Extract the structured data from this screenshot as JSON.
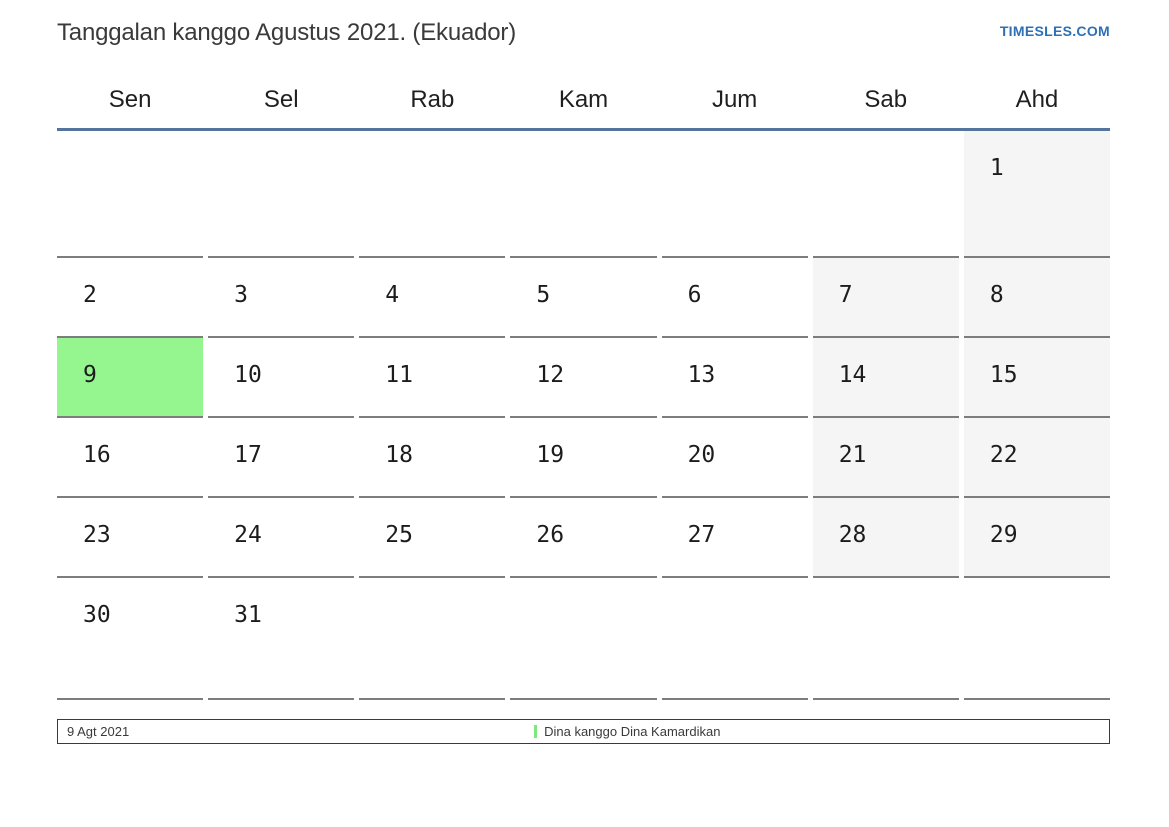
{
  "page": {
    "title": "Tanggalan kanggo Agustus 2021. (Ekuador)",
    "brand": "TIMESLES.COM"
  },
  "calendar": {
    "weekday_headers": [
      "Sen",
      "Sel",
      "Rab",
      "Kam",
      "Jum",
      "Sab",
      "Ahd"
    ],
    "weeks": [
      [
        "",
        "",
        "",
        "",
        "",
        "",
        "1"
      ],
      [
        "2",
        "3",
        "4",
        "5",
        "6",
        "7",
        "8"
      ],
      [
        "9",
        "10",
        "11",
        "12",
        "13",
        "14",
        "15"
      ],
      [
        "16",
        "17",
        "18",
        "19",
        "20",
        "21",
        "22"
      ],
      [
        "23",
        "24",
        "25",
        "26",
        "27",
        "28",
        "29"
      ],
      [
        "30",
        "31",
        "",
        "",
        "",
        "",
        ""
      ]
    ],
    "highlighted_day": "9",
    "weekend_columns": [
      5,
      6
    ]
  },
  "legend": {
    "date_label": "9 Agt 2021",
    "holiday_label": "Dina kanggo Dina Kamardikan"
  },
  "colors": {
    "highlight_green": "#95f690",
    "weekend_bg": "#f5f5f5",
    "header_line_blue": "#54749e",
    "cell_border_gray": "#7d7d7d",
    "brand_blue": "#2d70b5",
    "legend_marker_green": "#7de87d"
  }
}
